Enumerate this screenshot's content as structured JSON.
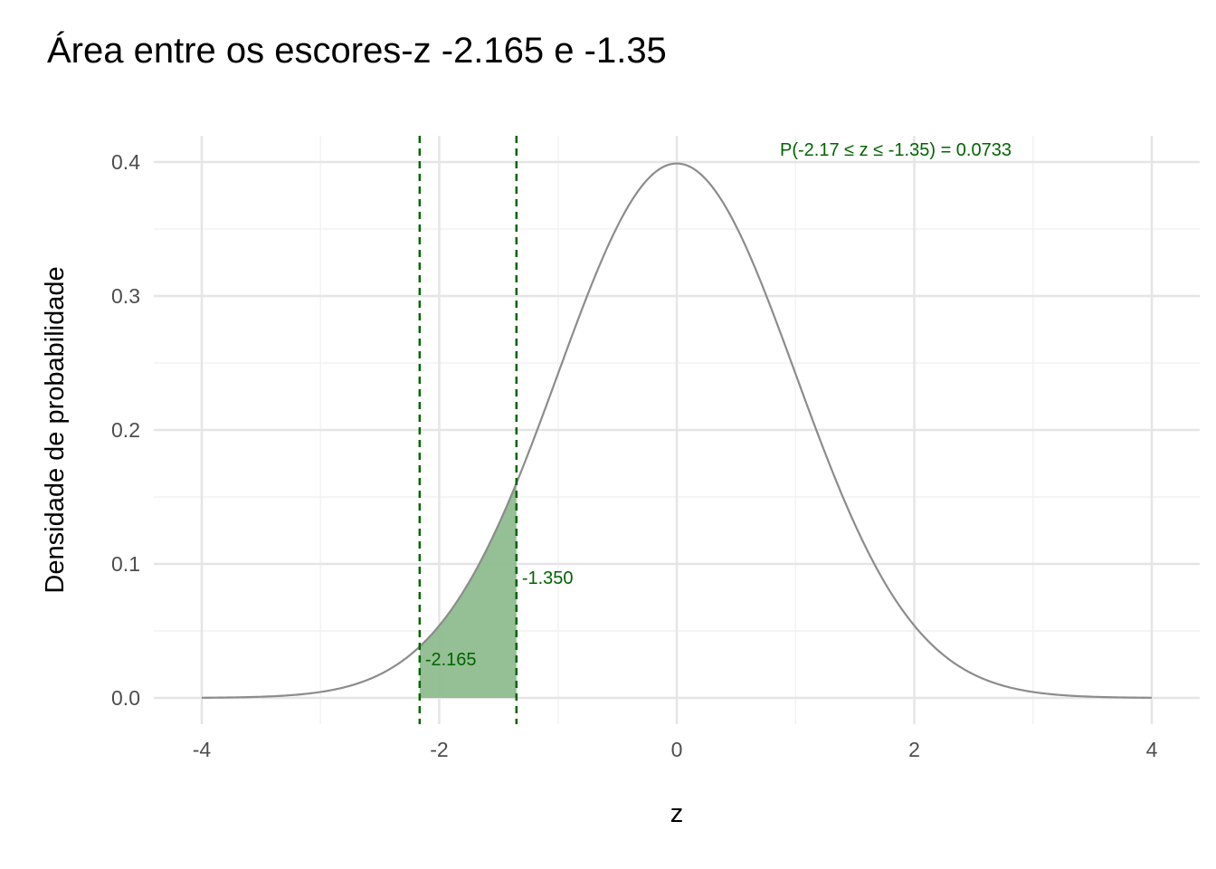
{
  "title": "Área entre os escores-z -2.165 e -1.35",
  "colors": {
    "accent": "#006400",
    "fill": "#8fbc8f",
    "curve": "#8c8c8c",
    "grid_major": "#e5e5e5",
    "grid_minor": "#f2f2f2",
    "tick_text": "#4d4d4d"
  },
  "chart_data": {
    "type": "area",
    "title": "Área entre os escores-z -2.165 e -1.35",
    "xlabel": "z",
    "ylabel": "Densidade de probabilidade",
    "xlim": [
      -4,
      4
    ],
    "ylim": [
      0,
      0.4
    ],
    "x_ticks": [
      -4,
      -2,
      0,
      2,
      4
    ],
    "x_tick_labels": [
      "-4",
      "-2",
      "0",
      "2",
      "4"
    ],
    "y_ticks": [
      0.0,
      0.1,
      0.2,
      0.3,
      0.4
    ],
    "y_tick_labels": [
      "0.0",
      "0.1",
      "0.2",
      "0.3",
      "0.4"
    ],
    "grid": true,
    "series": [
      {
        "distribution": "standard normal density",
        "x": [
          -4,
          -3.5,
          -3,
          -2.5,
          -2.165,
          -2,
          -1.5,
          -1.35,
          -1,
          -0.5,
          0,
          0.5,
          1,
          1.5,
          2,
          2.5,
          3,
          3.5,
          4
        ],
        "y": [
          0.0001,
          0.0009,
          0.0044,
          0.0175,
          0.0382,
          0.054,
          0.1295,
          0.1604,
          0.242,
          0.3521,
          0.3989,
          0.3521,
          0.242,
          0.1295,
          0.054,
          0.0175,
          0.0044,
          0.0009,
          0.0001
        ]
      }
    ],
    "shaded_region": {
      "from": -2.165,
      "to": -1.35
    },
    "vlines": [
      {
        "x": -2.165,
        "label": "-2.165"
      },
      {
        "x": -1.35,
        "label": "-1.350"
      }
    ],
    "annotations": [
      {
        "text": "P(-2.17 ≤ z ≤ -1.35) = 0.0733",
        "x": 1.0,
        "y": 0.4
      }
    ]
  }
}
